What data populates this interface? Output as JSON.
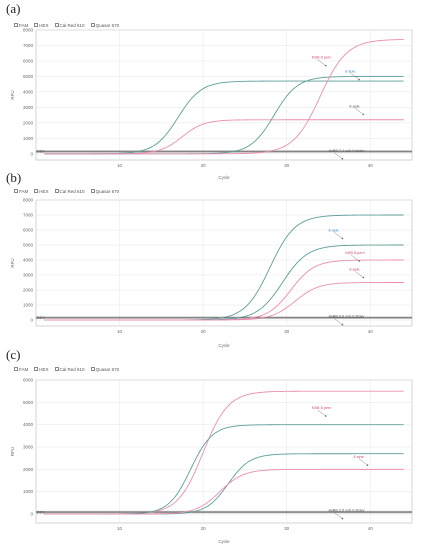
{
  "panels": [
    {
      "label": "(a)",
      "legend": [
        "FAM",
        "HEX",
        "Cal Red 610",
        "Quasar 670"
      ]
    },
    {
      "label": "(b)",
      "legend": [
        "FAM",
        "HEX",
        "Cal Red 610",
        "Quasar 670"
      ]
    },
    {
      "label": "(c)",
      "legend": [
        "FAM",
        "HEX",
        "Cal Red 610",
        "Quasar 670"
      ]
    }
  ],
  "colors": {
    "grid": "#e6e6e6",
    "axis": "#aaaaaa",
    "teal": "#5d9e9a",
    "blue": "#4a86c0",
    "pink": "#e98db1",
    "pink_dark": "#d96a95",
    "baseline": "#7a7a7a"
  },
  "chart_data": [
    {
      "type": "line",
      "xlabel": "Cycle",
      "ylabel": "RFU",
      "xlim": [
        0,
        45
      ],
      "ylim": [
        -400,
        8000
      ],
      "x_ticks": [
        10,
        20,
        30,
        40
      ],
      "y_ticks": [
        0,
        1000,
        2000,
        3000,
        4000,
        5000,
        6000,
        7000,
        8000
      ],
      "x_tick_labels": [
        "10",
        "20",
        "30",
        "40"
      ],
      "y_tick_labels": [
        "0",
        "1000",
        "2000",
        "3000",
        "4000",
        "5000",
        "6000",
        "7000",
        "8000"
      ],
      "threshold_value": 150,
      "threshold_label": "DEV",
      "series": [
        {
          "color": "teal",
          "plateau": 4700,
          "midpoint": 17,
          "slope": 1.4
        },
        {
          "color": "pink",
          "plateau": 2200,
          "midpoint": 17.5,
          "slope": 1.3
        },
        {
          "color": "teal",
          "plateau": 5000,
          "midpoint": 28.5,
          "slope": 1.4
        },
        {
          "color": "pink",
          "plateau": 7400,
          "midpoint": 34,
          "slope": 1.6
        }
      ],
      "annotations": [
        {
          "x": 33,
          "y": 6150,
          "text": "NSB 8 pern",
          "color": "#d44a7a"
        },
        {
          "x": 37,
          "y": 5250,
          "text": "8 apie",
          "color": "#4a86c0"
        },
        {
          "x": 37.5,
          "y": 3000,
          "text": "8 apie",
          "color": "#555555"
        },
        {
          "x": 35,
          "y": 130,
          "text": "AvBB 7.1  cv0.0 stdev",
          "color": "#555555"
        }
      ]
    },
    {
      "type": "line",
      "xlabel": "Cycle",
      "ylabel": "RFU",
      "xlim": [
        0,
        45
      ],
      "ylim": [
        -400,
        8000
      ],
      "x_ticks": [
        10,
        20,
        30,
        40
      ],
      "y_ticks": [
        0,
        1000,
        2000,
        3000,
        4000,
        5000,
        6000,
        7000,
        8000
      ],
      "x_tick_labels": [
        "10",
        "20",
        "30",
        "40"
      ],
      "y_tick_labels": [
        "0",
        "1000",
        "2000",
        "3000",
        "4000",
        "5000",
        "6000",
        "7000",
        "8000"
      ],
      "threshold_value": 150,
      "threshold_label": "DEV",
      "series": [
        {
          "color": "teal",
          "plateau": 7000,
          "midpoint": 28,
          "slope": 1.5
        },
        {
          "color": "teal",
          "plateau": 5000,
          "midpoint": 29.5,
          "slope": 1.5
        },
        {
          "color": "pink",
          "plateau": 4000,
          "midpoint": 30.5,
          "slope": 1.4
        },
        {
          "color": "pink",
          "plateau": 2500,
          "midpoint": 31,
          "slope": 1.4
        }
      ],
      "annotations": [
        {
          "x": 35,
          "y": 5900,
          "text": "8 apie",
          "color": "#4a86c0"
        },
        {
          "x": 37,
          "y": 4400,
          "text": "NSB 8 pern",
          "color": "#d44a7a"
        },
        {
          "x": 37.5,
          "y": 3300,
          "text": "8 apie",
          "color": "#d44a7a"
        },
        {
          "x": 35,
          "y": 160,
          "text": "AvBB 9.6  cv0.0 stdev",
          "color": "#555555"
        }
      ]
    },
    {
      "type": "line",
      "xlabel": "Cycle",
      "ylabel": "RFU",
      "xlim": [
        0,
        45
      ],
      "ylim": [
        -400,
        6000
      ],
      "x_ticks": [
        10,
        20,
        30,
        40
      ],
      "y_ticks": [
        0,
        1000,
        2000,
        3000,
        4000,
        5000,
        6000
      ],
      "x_tick_labels": [
        "10",
        "20",
        "30",
        "40"
      ],
      "y_tick_labels": [
        "0",
        "1000",
        "2000",
        "3000",
        "4000",
        "5000",
        "6000"
      ],
      "threshold_value": 90,
      "threshold_label": "DEV",
      "series": [
        {
          "color": "pink",
          "plateau": 5500,
          "midpoint": 20,
          "slope": 1.5
        },
        {
          "color": "teal",
          "plateau": 4000,
          "midpoint": 18.5,
          "slope": 1.3
        },
        {
          "color": "teal",
          "plateau": 2700,
          "midpoint": 23,
          "slope": 1.3
        },
        {
          "color": "pink",
          "plateau": 2000,
          "midpoint": 22,
          "slope": 1.4
        }
      ],
      "annotations": [
        {
          "x": 33,
          "y": 4700,
          "text": "NSB 8 pern",
          "color": "#d44a7a"
        },
        {
          "x": 38,
          "y": 2500,
          "text": "8 apie",
          "color": "#d44a7a"
        },
        {
          "x": 35,
          "y": 110,
          "text": "AvBB 2.5  cv0.0 stdev",
          "color": "#555555"
        }
      ]
    }
  ]
}
